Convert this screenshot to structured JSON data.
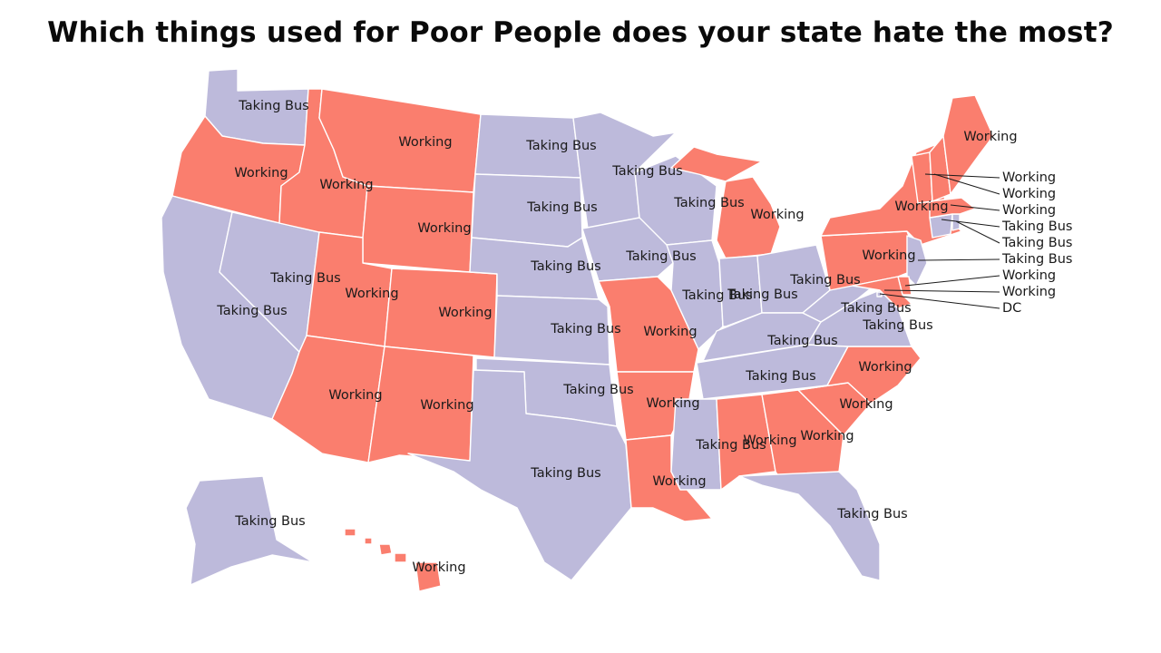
{
  "title": "Which things used for Poor People does your state hate the most?",
  "colors": {
    "working": "#fa7e6e",
    "taking_bus": "#bdbadb",
    "border": "#ffffff",
    "text": "#1a1a1a"
  },
  "categories": {
    "working": "Working",
    "taking_bus": "Taking Bus",
    "dc": "DC"
  },
  "states": [
    {
      "id": "WA",
      "cat": "taking_bus"
    },
    {
      "id": "OR",
      "cat": "working"
    },
    {
      "id": "CA",
      "cat": "taking_bus"
    },
    {
      "id": "NV",
      "cat": "taking_bus"
    },
    {
      "id": "ID",
      "cat": "working"
    },
    {
      "id": "MT",
      "cat": "working"
    },
    {
      "id": "WY",
      "cat": "working"
    },
    {
      "id": "UT",
      "cat": "working"
    },
    {
      "id": "AZ",
      "cat": "working"
    },
    {
      "id": "CO",
      "cat": "working"
    },
    {
      "id": "NM",
      "cat": "working"
    },
    {
      "id": "ND",
      "cat": "taking_bus"
    },
    {
      "id": "SD",
      "cat": "taking_bus"
    },
    {
      "id": "NE",
      "cat": "taking_bus"
    },
    {
      "id": "KS",
      "cat": "taking_bus"
    },
    {
      "id": "OK",
      "cat": "taking_bus"
    },
    {
      "id": "TX",
      "cat": "taking_bus"
    },
    {
      "id": "MN",
      "cat": "taking_bus"
    },
    {
      "id": "IA",
      "cat": "taking_bus"
    },
    {
      "id": "MO",
      "cat": "working"
    },
    {
      "id": "AR",
      "cat": "working"
    },
    {
      "id": "LA",
      "cat": "working"
    },
    {
      "id": "WI",
      "cat": "taking_bus"
    },
    {
      "id": "IL",
      "cat": "taking_bus"
    },
    {
      "id": "MI",
      "cat": "working"
    },
    {
      "id": "IN",
      "cat": "taking_bus"
    },
    {
      "id": "OH",
      "cat": "taking_bus"
    },
    {
      "id": "KY",
      "cat": "taking_bus"
    },
    {
      "id": "TN",
      "cat": "taking_bus"
    },
    {
      "id": "MS",
      "cat": "taking_bus"
    },
    {
      "id": "AL",
      "cat": "working"
    },
    {
      "id": "GA",
      "cat": "working"
    },
    {
      "id": "FL",
      "cat": "taking_bus"
    },
    {
      "id": "SC",
      "cat": "working"
    },
    {
      "id": "NC",
      "cat": "working"
    },
    {
      "id": "VA",
      "cat": "taking_bus"
    },
    {
      "id": "WV",
      "cat": "taking_bus"
    },
    {
      "id": "PA",
      "cat": "working"
    },
    {
      "id": "NY",
      "cat": "working"
    },
    {
      "id": "NJ",
      "cat": "taking_bus"
    },
    {
      "id": "DE",
      "cat": "working"
    },
    {
      "id": "MD",
      "cat": "working"
    },
    {
      "id": "DC",
      "cat": "dc"
    },
    {
      "id": "CT",
      "cat": "taking_bus"
    },
    {
      "id": "RI",
      "cat": "taking_bus"
    },
    {
      "id": "MA",
      "cat": "working"
    },
    {
      "id": "VT",
      "cat": "working"
    },
    {
      "id": "NH",
      "cat": "working"
    },
    {
      "id": "ME",
      "cat": "working"
    },
    {
      "id": "AK",
      "cat": "taking_bus"
    },
    {
      "id": "HI",
      "cat": "working"
    }
  ]
}
